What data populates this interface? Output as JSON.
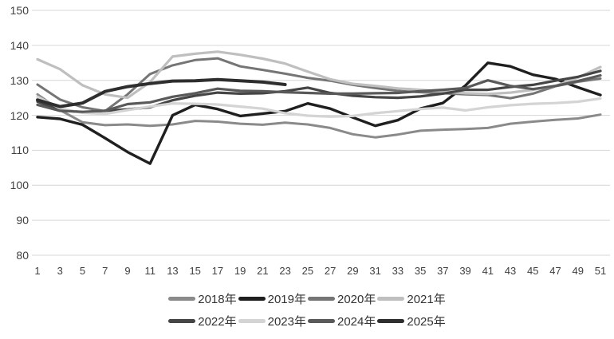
{
  "chart_data": {
    "type": "line",
    "title": "",
    "xlabel": "",
    "ylabel": "",
    "x_weeks": [
      1,
      3,
      5,
      7,
      9,
      11,
      13,
      15,
      17,
      19,
      21,
      23,
      25,
      27,
      29,
      31,
      33,
      35,
      37,
      39,
      41,
      43,
      45,
      47,
      49,
      51
    ],
    "x_tick_labels": [
      "1",
      "3",
      "5",
      "7",
      "9",
      "11",
      "13",
      "15",
      "17",
      "19",
      "21",
      "23",
      "25",
      "27",
      "29",
      "31",
      "33",
      "35",
      "37",
      "39",
      "41",
      "43",
      "45",
      "47",
      "49",
      "51"
    ],
    "y_ticks": [
      80,
      90,
      100,
      110,
      120,
      130,
      140,
      150
    ],
    "ylim": [
      80,
      150
    ],
    "xlim": [
      1,
      52
    ],
    "grid": "horizontal",
    "grid_color": "#d6d6d6",
    "tick_label_color": "#404040",
    "legend_position": "bottom",
    "legend_rows": [
      [
        "2018年",
        "2019年",
        "2020年",
        "2021年"
      ],
      [
        "2022年",
        "2023年",
        "2024年",
        "2025年"
      ]
    ],
    "series": [
      {
        "name": "2018年",
        "color": "#8a8a8a",
        "width": 3,
        "values": [
          126,
          121.5,
          118,
          117.2,
          117.4,
          117,
          117.4,
          118.4,
          118.2,
          117.6,
          117.3,
          117.9,
          117.4,
          116.4,
          114.6,
          113.7,
          114.5,
          115.6,
          115.9,
          116.1,
          116.4,
          117.6,
          118.2,
          118.7,
          119.1,
          120.2
        ]
      },
      {
        "name": "2019年",
        "color": "#1f1f1f",
        "width": 3.4,
        "values": [
          119.5,
          119,
          117.3,
          113.5,
          109.5,
          106.2,
          120,
          123,
          121.8,
          119.8,
          120.5,
          121.2,
          123.4,
          121.9,
          119.4,
          117,
          118.6,
          121.9,
          123.5,
          128.5,
          135,
          134,
          131.6,
          130.4,
          128,
          125.8
        ]
      },
      {
        "name": "2020年",
        "color": "#757575",
        "width": 3,
        "values": [
          128.8,
          124.5,
          122.3,
          121.2,
          126,
          131.8,
          134.3,
          135.8,
          136.3,
          134,
          133,
          131.9,
          130.7,
          129.9,
          128.7,
          127.8,
          127,
          126.6,
          126.3,
          126,
          125.8,
          124.9,
          126.2,
          128.3,
          129.6,
          130.5
        ]
      },
      {
        "name": "2021年",
        "color": "#bfbfbf",
        "width": 3.2,
        "values": [
          136,
          133.2,
          128.6,
          126,
          125,
          129.5,
          136.8,
          137.6,
          138.2,
          137.3,
          136.2,
          134.8,
          132.5,
          130.3,
          129,
          128.4,
          127.7,
          127.3,
          126.8,
          126.3,
          126.1,
          126.5,
          127.3,
          128.4,
          130.8,
          133.8
        ]
      },
      {
        "name": "2022年",
        "color": "#454545",
        "width": 3.2,
        "values": [
          123.9,
          121.5,
          120.9,
          121.3,
          121.7,
          122.3,
          124.3,
          125.6,
          126.5,
          126.2,
          126.3,
          126.9,
          127.9,
          126.4,
          125.6,
          125.2,
          125,
          125.4,
          126.2,
          127.3,
          127.3,
          128.1,
          128.7,
          129.9,
          131,
          132.7
        ]
      },
      {
        "name": "2023年",
        "color": "#d4d4d4",
        "width": 3.2,
        "values": [
          125.3,
          122,
          120.7,
          120.4,
          121.5,
          122.5,
          123.4,
          123.3,
          123.1,
          122.5,
          121.9,
          120.6,
          119.9,
          119.6,
          119.8,
          120.6,
          121.2,
          121.8,
          122.2,
          121.4,
          122.3,
          122.9,
          123.3,
          123.5,
          123.9,
          124.8
        ]
      },
      {
        "name": "2024年",
        "color": "#595959",
        "width": 3.2,
        "values": [
          123,
          121.3,
          121,
          121.3,
          123.2,
          123.7,
          125.3,
          126.3,
          127.6,
          127,
          126.9,
          126.6,
          126.4,
          126.2,
          126.2,
          126.3,
          126.4,
          126.9,
          127.3,
          127.8,
          130,
          128.4,
          127.5,
          128.4,
          129.8,
          131.4
        ]
      },
      {
        "name": "2025年",
        "color": "#2e2e2e",
        "width": 4,
        "values": [
          124.4,
          122.5,
          123.5,
          126.8,
          128.2,
          129.1,
          129.8,
          129.9,
          130.2,
          129.9,
          129.5,
          128.8,
          null,
          null,
          null,
          null,
          null,
          null,
          null,
          null,
          null,
          null,
          null,
          null,
          null,
          null
        ]
      }
    ]
  }
}
